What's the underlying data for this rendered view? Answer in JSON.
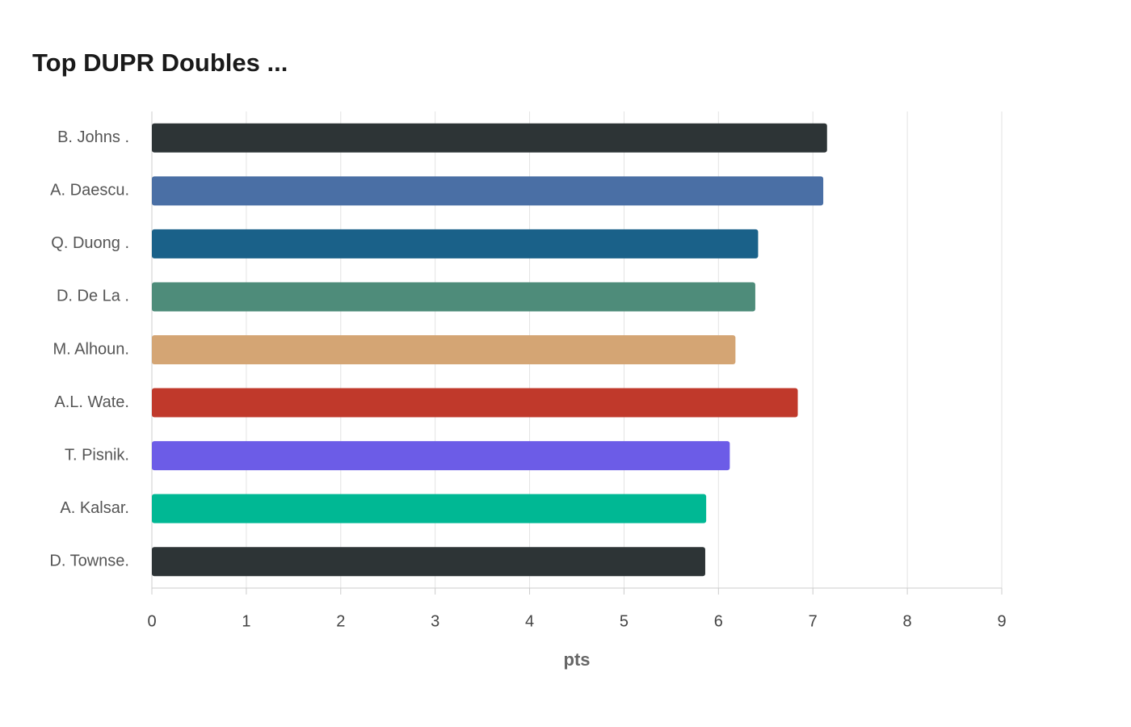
{
  "chart_data": {
    "type": "bar",
    "orientation": "horizontal",
    "title": "Top DUPR Doubles ...",
    "categories": [
      "B. Johns .",
      "A. Daescu.",
      "Q. Duong .",
      "D. De La .",
      "M. Alhoun.",
      "A.L. Wate.",
      "T. Pisnik.",
      "A. Kalsar.",
      "D. Townse."
    ],
    "values": [
      7.15,
      7.11,
      6.42,
      6.39,
      6.18,
      6.84,
      6.12,
      5.87,
      5.86
    ],
    "colors": [
      "#2d3436",
      "#4a6fa5",
      "#1a6189",
      "#4e8c7a",
      "#d4a574",
      "#c0392b",
      "#6c5ce7",
      "#00b894",
      "#2d3436"
    ],
    "xlabel": "pts",
    "xlim": [
      0,
      9
    ],
    "xticks": [
      0,
      1,
      2,
      3,
      4,
      5,
      6,
      7,
      8,
      9
    ],
    "grid": true
  }
}
